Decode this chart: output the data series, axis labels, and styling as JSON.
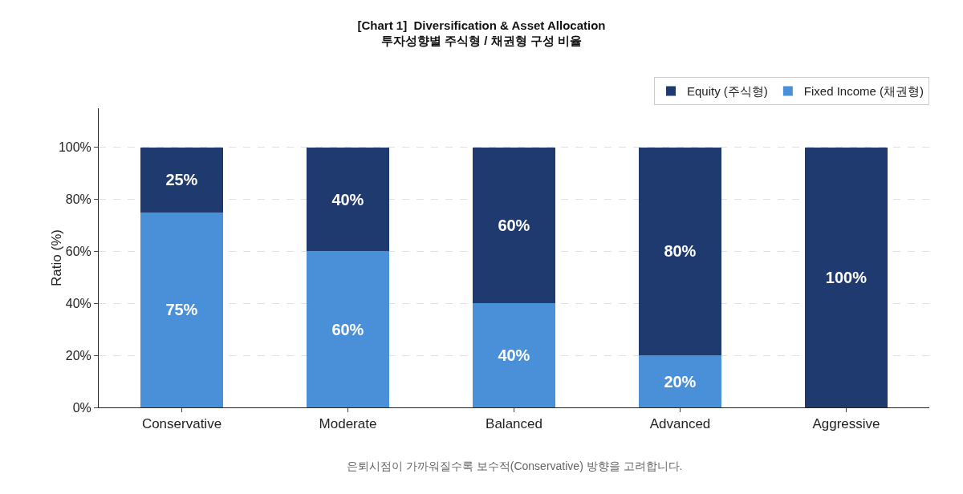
{
  "chart_data": {
    "type": "bar",
    "title": "[Chart 1]  Diversification & Asset Allocation\n투자성향별 주식형 / 채권형 구성 비율",
    "ylabel": "Ratio (%)",
    "categories": [
      "Conservative",
      "Moderate",
      "Balanced",
      "Advanced",
      "Aggressive"
    ],
    "stacked": true,
    "series": [
      {
        "name": "Fixed Income (채권형)",
        "color": "#4a90d9",
        "values": [
          75,
          60,
          40,
          20,
          0
        ],
        "value_labels": [
          "75%",
          "60%",
          "40%",
          "20%",
          null
        ]
      },
      {
        "name": "Equity (주식형)",
        "color": "#1f3a6e",
        "values": [
          25,
          40,
          60,
          80,
          100
        ],
        "value_labels": [
          "25%",
          "40%",
          "60%",
          "80%",
          "100%"
        ]
      }
    ],
    "ylim": [
      0,
      115
    ],
    "yticks": [
      {
        "value": 0,
        "label": "0%"
      },
      {
        "value": 20,
        "label": "20%"
      },
      {
        "value": 40,
        "label": "40%"
      },
      {
        "value": 60,
        "label": "60%"
      },
      {
        "value": 80,
        "label": "80%"
      },
      {
        "value": 100,
        "label": "100%"
      }
    ],
    "grid": "y",
    "legend": "top right",
    "annotations": [
      "은퇴시점이 가까워질수록 보수적(Conservative) 방향을 고려합니다."
    ]
  }
}
